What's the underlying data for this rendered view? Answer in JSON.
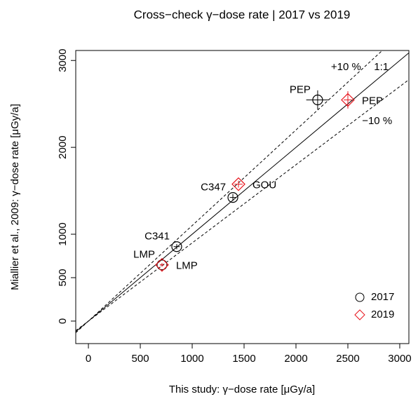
{
  "chart_data": {
    "type": "scatter",
    "title": "Cross−check γ−dose rate | 2017 vs 2019",
    "x_label": "This study: γ−dose rate [μGy/a]",
    "y_label": "Miallier et al., 2009: γ−dose rate [μGy/a]",
    "xlim": [
      -122,
      3088
    ],
    "ylim": [
      -259,
      3115
    ],
    "xticks": [
      0,
      500,
      1000,
      1500,
      2000,
      2500,
      3000
    ],
    "yticks": [
      0,
      500,
      1000,
      2000,
      3000
    ],
    "legend": "bottom-right",
    "ref_lines": [
      {
        "slope": 1,
        "label": "1:1"
      },
      {
        "slope": 1.1,
        "label": "+10 %"
      },
      {
        "slope": 0.9,
        "label": "−10 %"
      }
    ],
    "series": [
      {
        "name": "2017",
        "color": "#000000",
        "marker": "circle",
        "labels": [
          "LMP",
          "C341",
          "C347",
          "PEP"
        ],
        "x": [
          709,
          851,
          1392,
          2209
        ],
        "values": [
          647,
          857,
          1423,
          2546
        ],
        "xerr": [
          20,
          30,
          30,
          110
        ],
        "yerr": [
          20,
          30,
          40,
          110
        ]
      },
      {
        "name": "2019",
        "color": "#e8141c",
        "marker": "diamond",
        "labels": [
          "LMP",
          "GOU",
          "PEP"
        ],
        "x": [
          709,
          1446,
          2500
        ],
        "values": [
          647,
          1576,
          2546
        ],
        "xerr": [
          20,
          40,
          40
        ],
        "yerr": [
          20,
          40,
          100
        ]
      }
    ]
  }
}
